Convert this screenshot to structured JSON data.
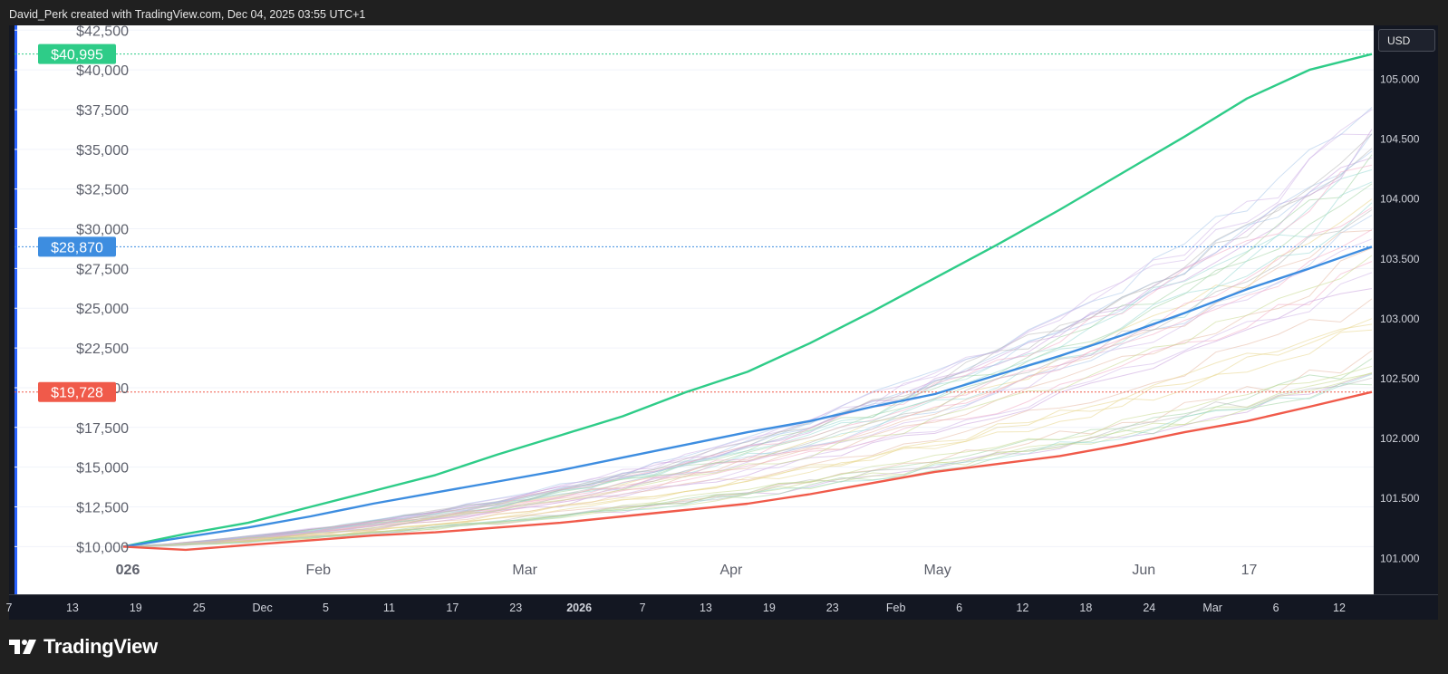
{
  "header": {
    "title": "David_Perk created with TradingView.com, Dec 04, 2025 03:55 UTC+1"
  },
  "currency_button": {
    "label": "USD"
  },
  "brand": {
    "name": "TradingView"
  },
  "colors": {
    "best": "#2ecc88",
    "median": "#3d8de0",
    "worst": "#f05a4a",
    "axis_text": "#5d606b",
    "bottom_text": "#d1d4dc"
  },
  "chart_data": {
    "type": "line",
    "title": "",
    "y_ticks": [
      "$10,000",
      "$12,500",
      "$15,000",
      "$17,500",
      "$20,000",
      "$22,500",
      "$25,000",
      "$27,500",
      "$30,000",
      "$32,500",
      "$35,000",
      "$37,500",
      "$40,000",
      "$42,500"
    ],
    "ylim": [
      7000,
      42800
    ],
    "right_ticks": [
      "101.000",
      "101.500",
      "102.000",
      "102.500",
      "103.000",
      "103.500",
      "104.000",
      "104.500",
      "105.000"
    ],
    "right_ylim": [
      100.7,
      105.45
    ],
    "inner_x_labels": [
      "026",
      "Feb",
      "Mar",
      "Apr",
      "May",
      "Jun",
      "17"
    ],
    "bottom_x_labels": [
      "7",
      "13",
      "19",
      "25",
      "Dec",
      "5",
      "11",
      "17",
      "23",
      "2026",
      "7",
      "13",
      "19",
      "23",
      "Feb",
      "6",
      "12",
      "18",
      "24",
      "Mar",
      "6",
      "12"
    ],
    "markers": [
      {
        "label": "$40,995",
        "value": 40995,
        "series": "best"
      },
      {
        "label": "$28,870",
        "value": 28870,
        "series": "median"
      },
      {
        "label": "$19,728",
        "value": 19728,
        "series": "worst"
      }
    ],
    "x": [
      0,
      5,
      10,
      15,
      20,
      25,
      30,
      35,
      40,
      45,
      50,
      55,
      60,
      65,
      70,
      75,
      80,
      85,
      90,
      95,
      100
    ],
    "series": [
      {
        "key": "best",
        "values": [
          10000,
          10800,
          11500,
          12500,
          13500,
          14500,
          15800,
          17000,
          18200,
          19700,
          21000,
          22800,
          24800,
          26900,
          29000,
          31200,
          33500,
          35800,
          38200,
          40000,
          40995
        ]
      },
      {
        "key": "median",
        "values": [
          10000,
          10600,
          11200,
          11900,
          12700,
          13400,
          14100,
          14800,
          15600,
          16400,
          17200,
          17900,
          18800,
          19600,
          20800,
          22000,
          23300,
          24700,
          26200,
          27500,
          28870
        ]
      },
      {
        "key": "worst",
        "values": [
          10000,
          9800,
          10100,
          10400,
          10700,
          10900,
          11200,
          11500,
          11900,
          12300,
          12700,
          13300,
          14000,
          14700,
          15200,
          15700,
          16400,
          17200,
          17900,
          18800,
          19728
        ]
      }
    ],
    "background_paths": 40,
    "grid": true
  }
}
